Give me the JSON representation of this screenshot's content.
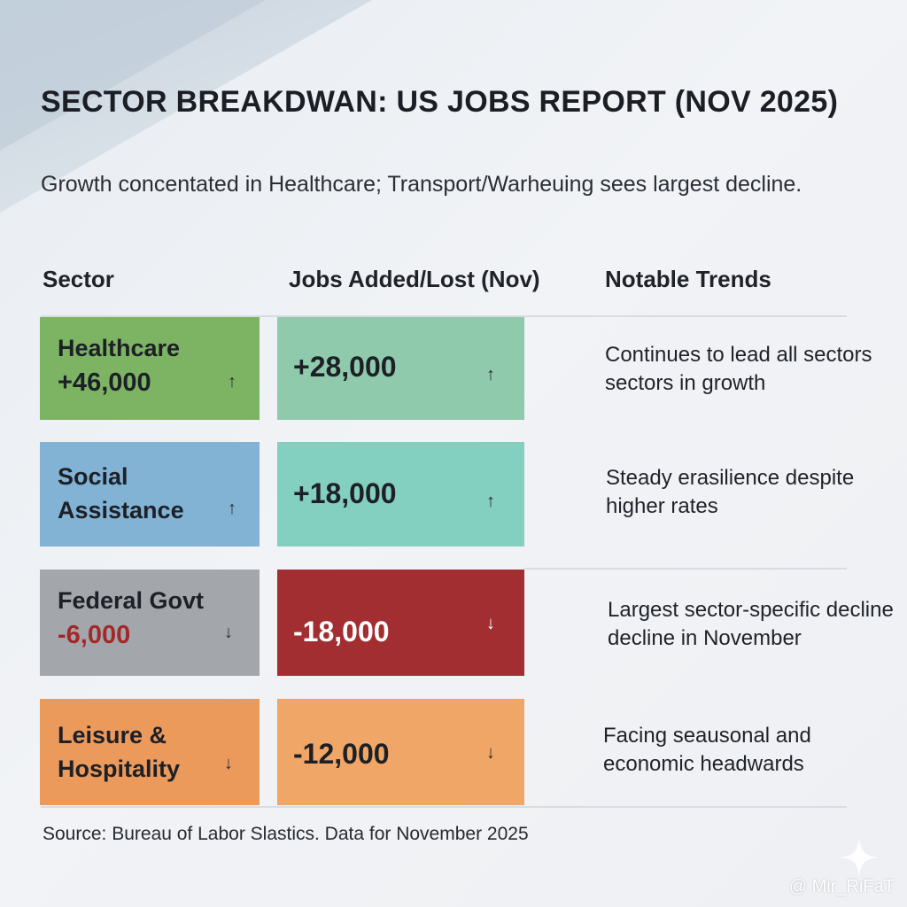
{
  "header": {
    "title": "SECTOR BREAKDWAN: US JOBS REPORT (NOV 2025)",
    "subtitle": "Growth concentated in Healthcare; Transport/Warheuing sees largest decline."
  },
  "columns": {
    "sector": "Sector",
    "jobs": "Jobs Added/Lost (Nov)",
    "trends": "Notable Trends"
  },
  "rows": [
    {
      "sector_lines": [
        "Healthcare"
      ],
      "sector_value": "+46,000",
      "sector_arrow": "↑",
      "jobs": "+28,000",
      "jobs_arrow": "↑",
      "trend_lines": [
        "Continues to lead all sectors",
        "sectors in growth"
      ],
      "sector_color": "#7db463",
      "jobs_color": "#8fcaad",
      "jobs_text_color": "#1d2026"
    },
    {
      "sector_lines": [
        "Social",
        "Assistance"
      ],
      "sector_value": "",
      "sector_arrow": "↑",
      "jobs": "+18,000",
      "jobs_arrow": "↑",
      "trend_lines": [
        "Steady erasilience despite",
        "higher rates"
      ],
      "sector_color": "#82b2d4",
      "jobs_color": "#83cfc0",
      "jobs_text_color": "#1d2026"
    },
    {
      "sector_lines": [
        "Federal Govt"
      ],
      "sector_value": "-6,000",
      "sector_arrow": "↓",
      "jobs": "-18,000",
      "jobs_arrow": "↓",
      "trend_lines": [
        "Largest sector-specific decline",
        "decline in November"
      ],
      "sector_color": "#a3a7ab",
      "jobs_color": "#a22e31",
      "jobs_text_color": "#ffffff"
    },
    {
      "sector_lines": [
        "Leisure &",
        "Hospitality"
      ],
      "sector_value": "",
      "sector_arrow": "↓",
      "jobs": "-12,000",
      "jobs_arrow": "↓",
      "trend_lines": [
        "Facing seausonal and",
        "economic headwards"
      ],
      "sector_color": "#ec9a5c",
      "jobs_color": "#efa666",
      "jobs_text_color": "#1d2026"
    }
  ],
  "footer": {
    "source": "Source: Bureau of Labor Slastics. Data for November 2025",
    "watermark": "@ Mir_RiFaT"
  }
}
